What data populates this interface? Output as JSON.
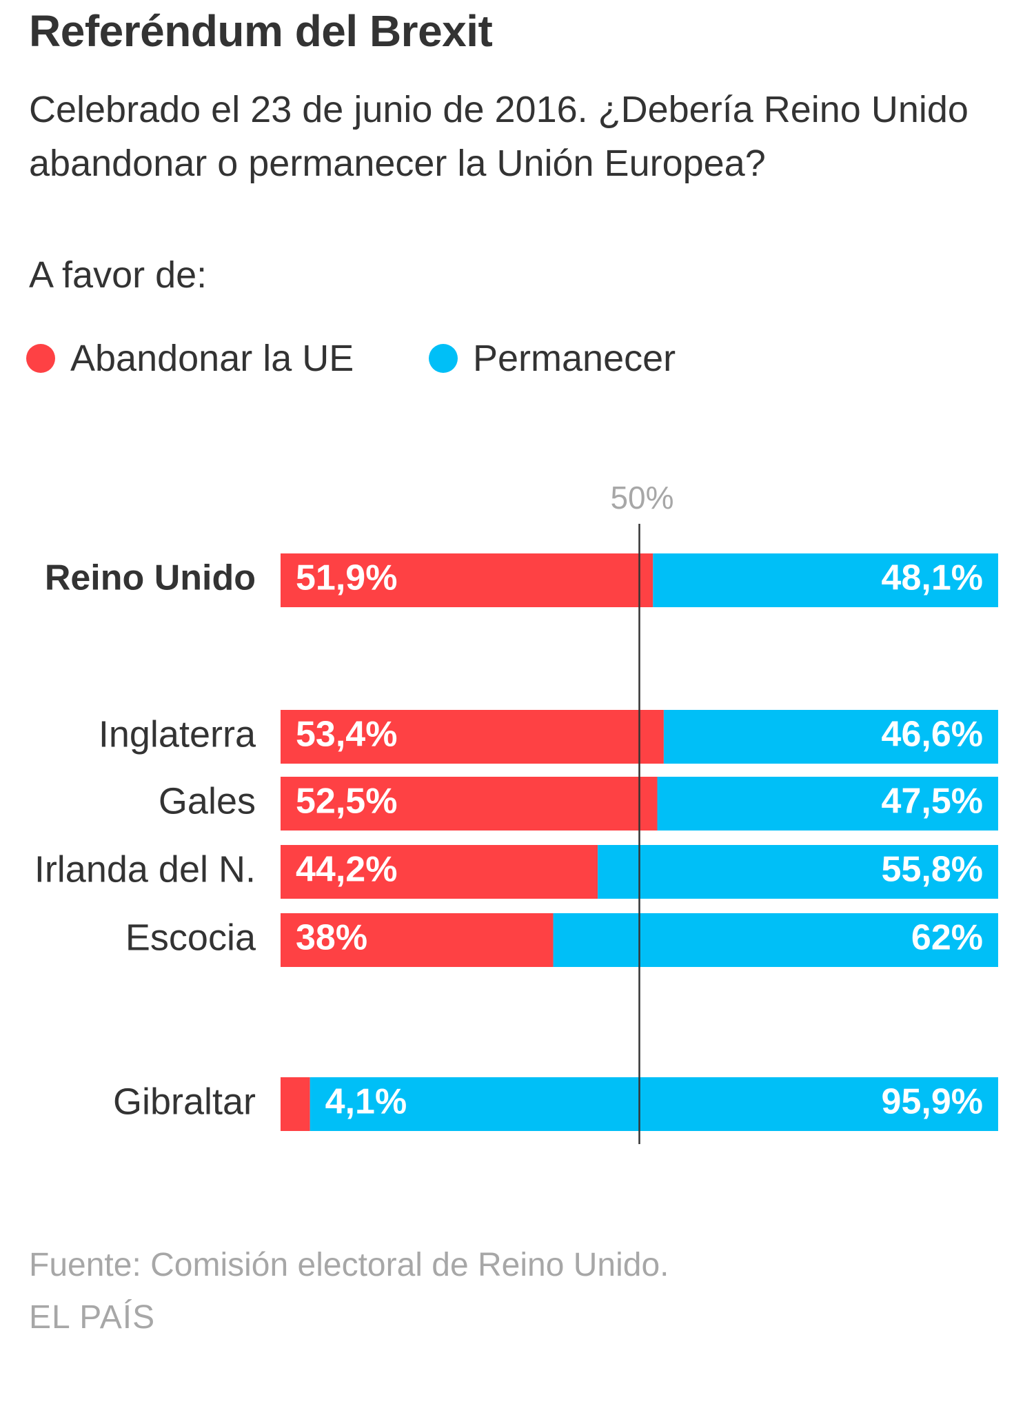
{
  "header": {
    "title": "Referéndum del Brexit",
    "subtitle": "Celebrado el 23 de junio de 2016. ¿Debería Reino Unido abandonar o permanecer la Unión Europea?",
    "favor_label": "A favor de:"
  },
  "legend": {
    "leave_label": "Abandonar la UE",
    "remain_label": "Permanecer"
  },
  "colors": {
    "leave": "#fe4144",
    "remain": "#00bff7",
    "text": "#333333",
    "muted": "#a7a7a7"
  },
  "chart_data": {
    "type": "bar",
    "stacked": true,
    "orientation": "horizontal",
    "categories": [
      "Reino Unido",
      "Inglaterra",
      "Gales",
      "Irlanda del N.",
      "Escocia",
      "Gibraltar"
    ],
    "series": [
      {
        "name": "Abandonar la UE",
        "values": [
          51.9,
          53.4,
          52.5,
          44.2,
          38,
          4.1
        ],
        "labels": [
          "51,9%",
          "53,4%",
          "52,5%",
          "44,2%",
          "38%",
          "4,1%"
        ]
      },
      {
        "name": "Permanecer",
        "values": [
          48.1,
          46.6,
          47.5,
          55.8,
          62,
          95.9
        ],
        "labels": [
          "48,1%",
          "46,6%",
          "47,5%",
          "55,8%",
          "62%",
          "95,9%"
        ]
      }
    ],
    "reference_line": {
      "value": 50,
      "label": "50%"
    },
    "xlim": [
      0,
      100
    ]
  },
  "footer": {
    "source": "Fuente: Comisión electoral de Reino Unido.",
    "brand": "EL PAÍS"
  }
}
